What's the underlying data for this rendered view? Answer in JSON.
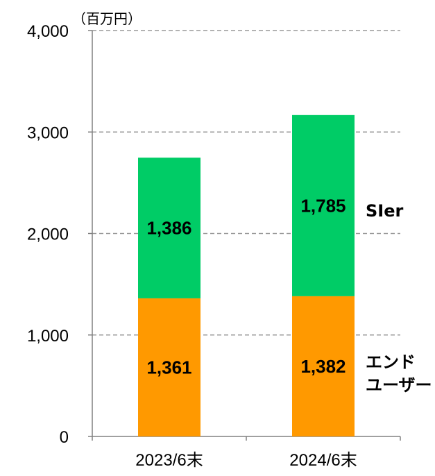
{
  "colors": {
    "sier": "#00CC66",
    "end_user": "#FF9900",
    "grid": "#999999",
    "axis": "#808080"
  },
  "chart_data": {
    "type": "bar",
    "stacked": true,
    "unit_label": "（百万円）",
    "categories": [
      "2023/6末",
      "2024/6末"
    ],
    "series": [
      {
        "name": "エンドユーザー",
        "values": [
          1361,
          1382
        ]
      },
      {
        "name": "SIer",
        "values": [
          1386,
          1785
        ]
      }
    ],
    "ylim": [
      0,
      4000
    ],
    "yticks": [
      0,
      1000,
      2000,
      3000,
      4000
    ],
    "ytick_labels": [
      "0",
      "1,000",
      "2,000",
      "3,000",
      "4,000"
    ],
    "value_labels": [
      [
        "1,361",
        "1,382"
      ],
      [
        "1,386",
        "1,785"
      ]
    ],
    "legend_labels": [
      "SIer",
      "エンド",
      "ユーザー"
    ],
    "grid": true,
    "legend": "right, inline"
  }
}
